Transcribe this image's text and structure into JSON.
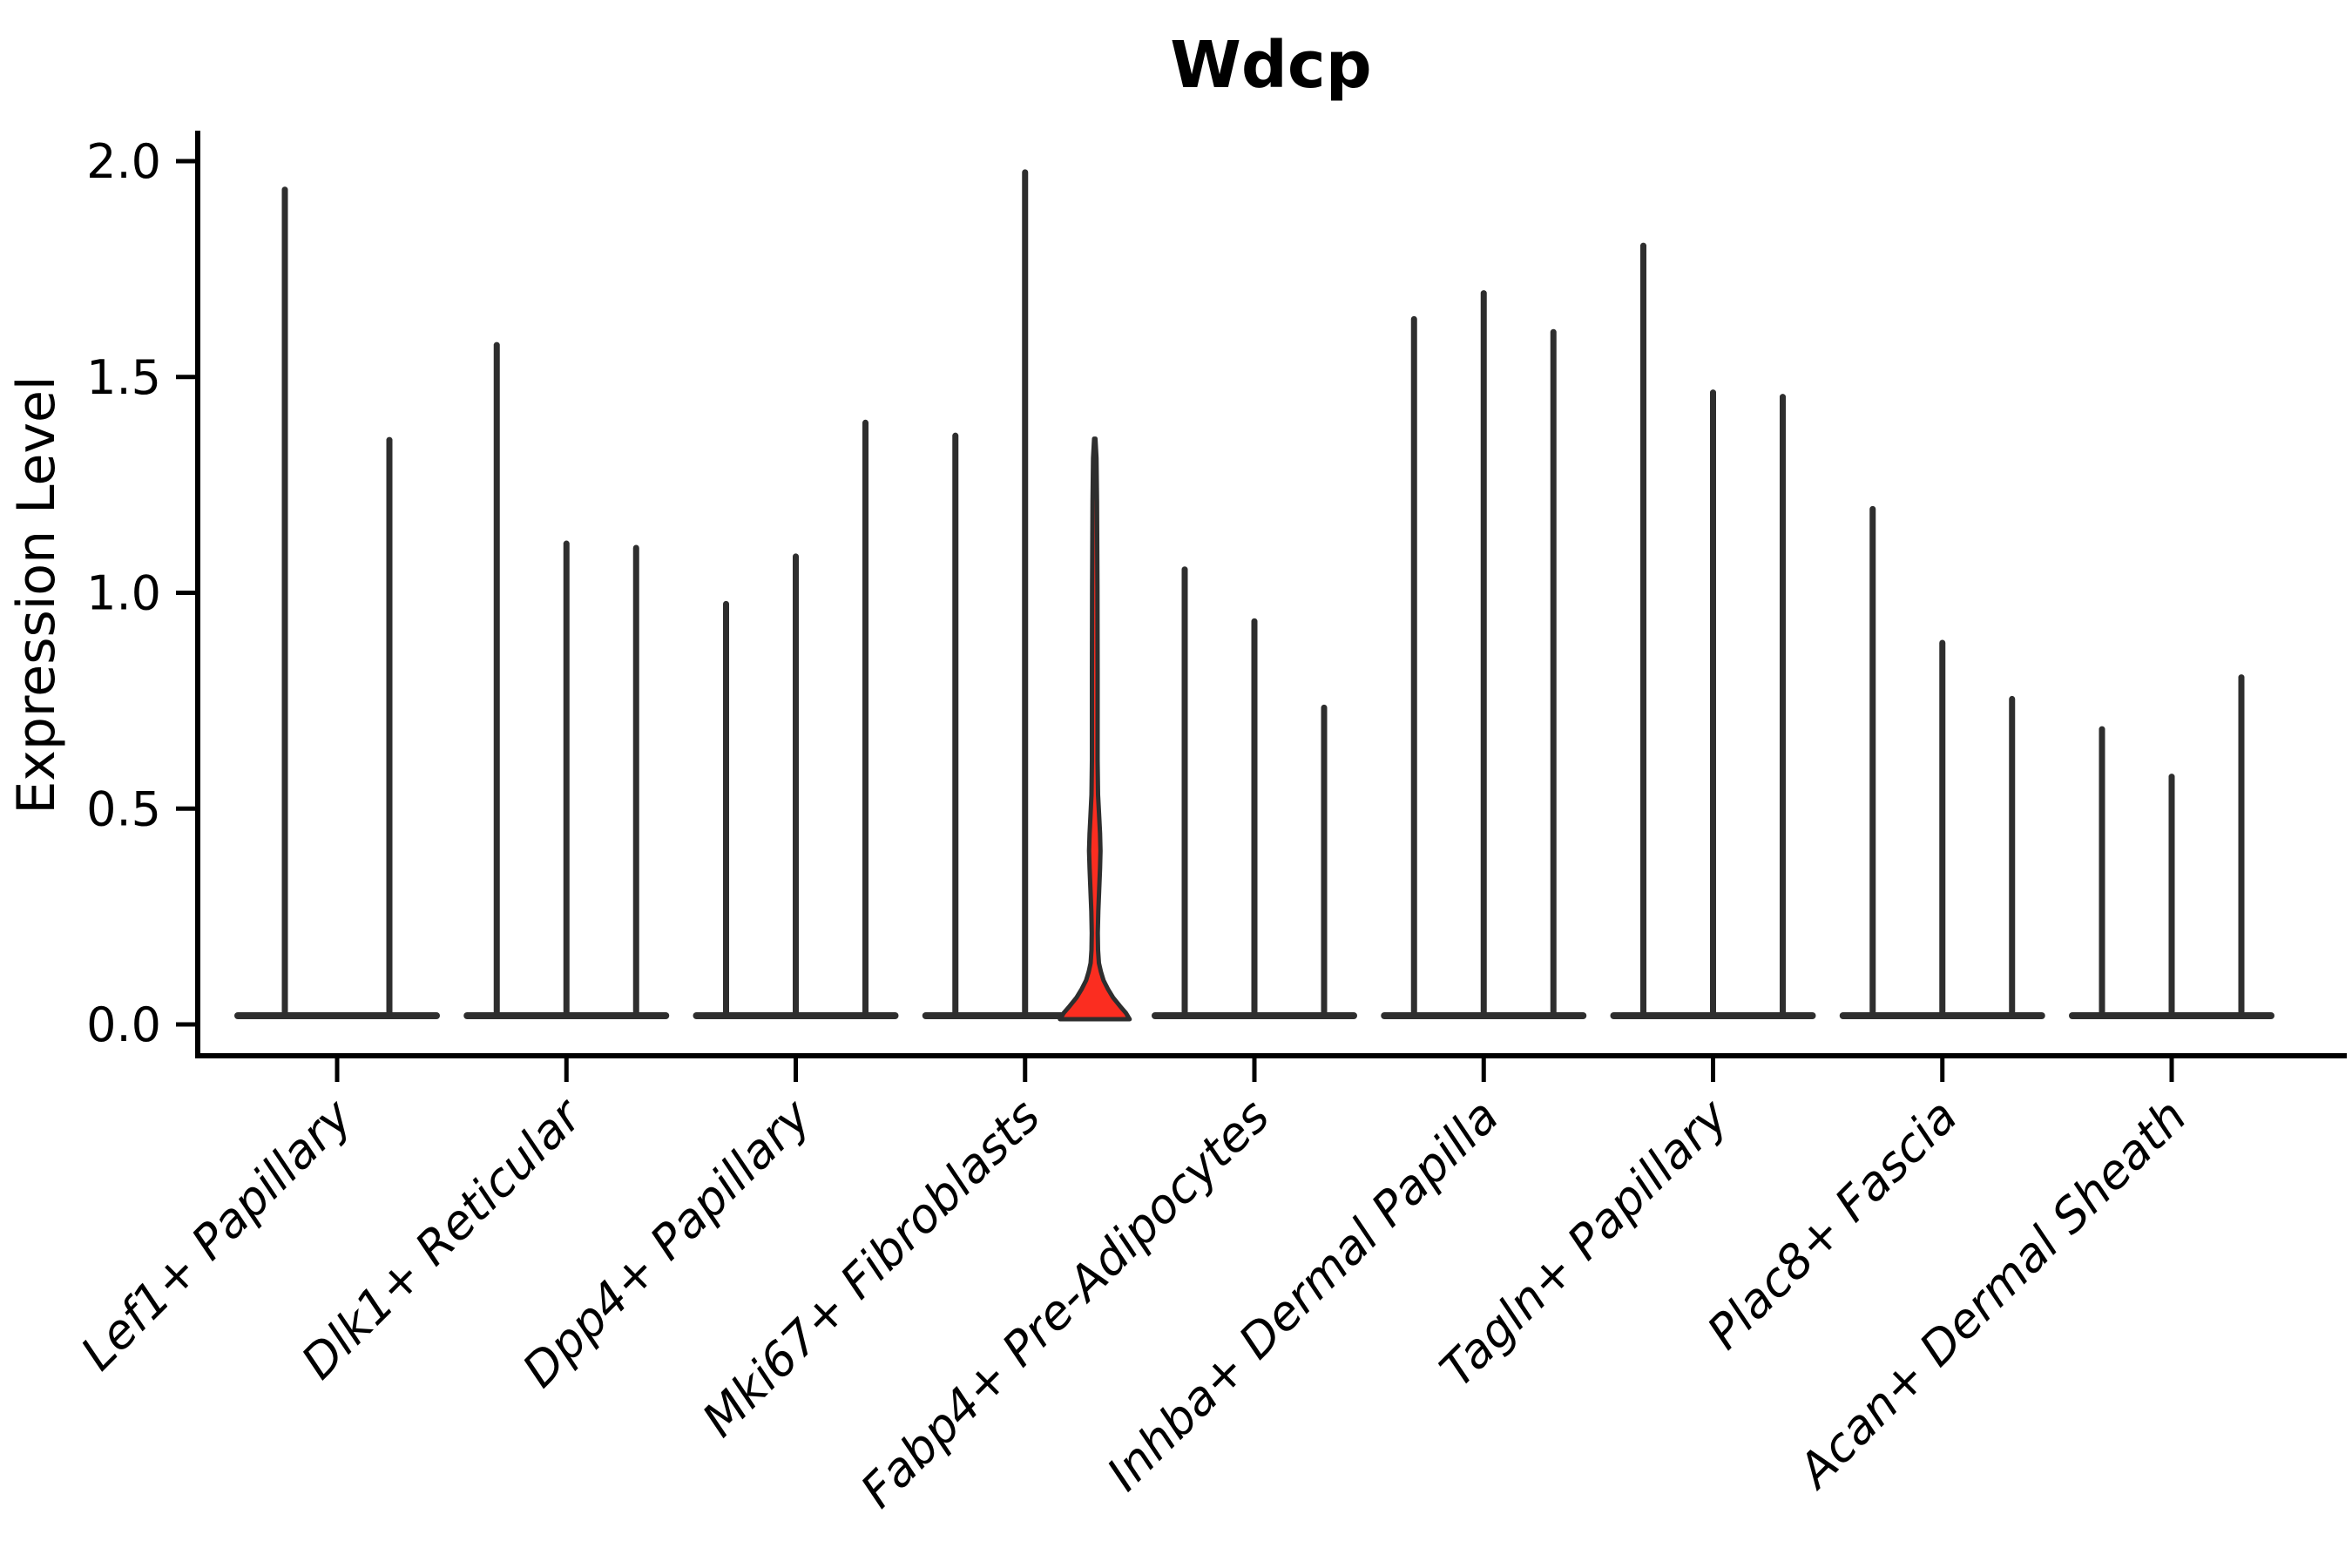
{
  "chart_data": {
    "type": "violin",
    "title": "Wdcp",
    "xlabel": "",
    "ylabel": "Expression Level",
    "ylim": [
      0,
      2.05
    ],
    "yticks": [
      {
        "value": 0.0,
        "label": "0.0"
      },
      {
        "value": 0.5,
        "label": "0.5"
      },
      {
        "value": 1.0,
        "label": "1.0"
      },
      {
        "value": 1.5,
        "label": "1.5"
      },
      {
        "value": 2.0,
        "label": "2.0"
      }
    ],
    "grid": false,
    "legend_position": "none",
    "x_tick_label_rotation_deg": 45,
    "groups": [
      {
        "label": "Lef1+ Papillary",
        "violin_max_values": [
          1.94,
          1.36
        ]
      },
      {
        "label": "Dlk1+ Reticular",
        "violin_max_values": [
          1.58,
          1.12,
          1.11
        ]
      },
      {
        "label": "Dpp4+ Papillary",
        "violin_max_values": [
          0.98,
          1.09,
          1.4
        ]
      },
      {
        "label": "Mki67+ Fibroblasts",
        "violin_max_values": [
          1.37,
          1.98,
          1.35
        ],
        "highlight_index": 2
      },
      {
        "label": "Fabp4+ Pre-Adipocytes",
        "violin_max_values": [
          1.06,
          0.94,
          0.74
        ]
      },
      {
        "label": "Inhba+ Dermal Papilla",
        "violin_max_values": [
          1.64,
          1.7,
          1.61
        ]
      },
      {
        "label": "Tagln+ Papillary",
        "violin_max_values": [
          1.81,
          1.47,
          1.46
        ]
      },
      {
        "label": "Plac8+ Fascia",
        "violin_max_values": [
          1.2,
          0.89,
          0.76
        ]
      },
      {
        "label": "Acan+ Dermal Sheath",
        "violin_max_values": [
          0.69,
          0.58,
          0.81
        ]
      }
    ],
    "highlighted_violin": {
      "group": "Mki67+ Fibroblasts",
      "slot": 3,
      "max_value": 1.35,
      "density_bulge_range": [
        0.27,
        0.5
      ],
      "profile_value_halfwidth": [
        [
          0.0,
          40.0
        ],
        [
          0.015,
          35.5
        ],
        [
          0.03,
          29.0
        ],
        [
          0.05,
          21.0
        ],
        [
          0.07,
          15.0
        ],
        [
          0.09,
          10.0
        ],
        [
          0.11,
          7.0
        ],
        [
          0.13,
          4.8
        ],
        [
          0.16,
          3.8
        ],
        [
          0.2,
          3.4
        ],
        [
          0.25,
          4.0
        ],
        [
          0.3,
          5.0
        ],
        [
          0.35,
          6.0
        ],
        [
          0.39,
          6.6
        ],
        [
          0.43,
          6.0
        ],
        [
          0.47,
          5.0
        ],
        [
          0.52,
          3.8
        ],
        [
          0.6,
          3.3
        ],
        [
          0.8,
          3.2
        ],
        [
          1.0,
          3.1
        ],
        [
          1.2,
          2.6
        ],
        [
          1.3,
          1.9
        ],
        [
          1.345,
          0.8
        ]
      ]
    },
    "colors": {
      "violin_stroke": "#2e2e2e",
      "highlight_fill": "#fb2d20",
      "spine": "#000000",
      "text": "#000000",
      "background": "#ffffff"
    }
  }
}
